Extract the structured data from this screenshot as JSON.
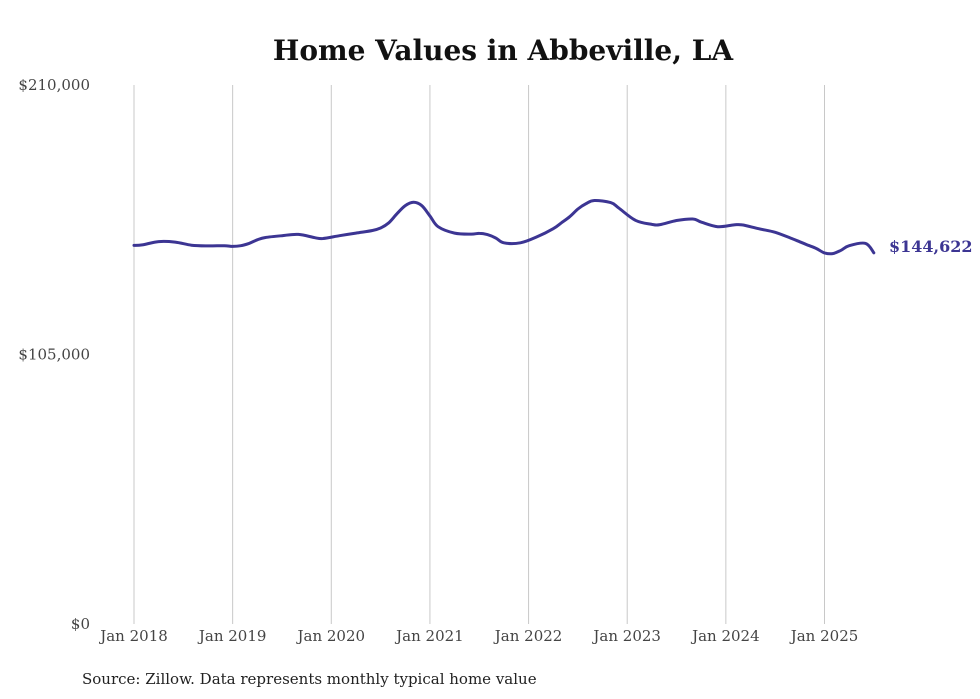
{
  "chart_data": {
    "type": "line",
    "title": "Home Values in Abbeville, LA",
    "xlabel": "",
    "ylabel": "",
    "ylim": [
      0,
      210000
    ],
    "y_ticks": [
      {
        "value": 0,
        "label": "$0"
      },
      {
        "value": 105000,
        "label": "$105,000"
      },
      {
        "value": 210000,
        "label": "$210,000"
      }
    ],
    "x_ticks": [
      {
        "value": 2018,
        "label": "Jan 2018"
      },
      {
        "value": 2019,
        "label": "Jan 2019"
      },
      {
        "value": 2020,
        "label": "Jan 2020"
      },
      {
        "value": 2021,
        "label": "Jan 2021"
      },
      {
        "value": 2022,
        "label": "Jan 2022"
      },
      {
        "value": 2023,
        "label": "Jan 2023"
      },
      {
        "value": 2024,
        "label": "Jan 2024"
      },
      {
        "value": 2025,
        "label": "Jan 2025"
      }
    ],
    "xlim": [
      2018,
      2025.5
    ],
    "grid": "vertical",
    "series": [
      {
        "name": "Typical home value",
        "color": "#3c3593",
        "x": [
          2018.0,
          2018.083,
          2018.25,
          2018.417,
          2018.583,
          2018.75,
          2018.917,
          2019.0,
          2019.083,
          2019.167,
          2019.25,
          2019.333,
          2019.5,
          2019.667,
          2019.833,
          2019.917,
          2020.083,
          2020.25,
          2020.417,
          2020.5,
          2020.583,
          2020.667,
          2020.75,
          2020.833,
          2020.917,
          2021.0,
          2021.083,
          2021.25,
          2021.417,
          2021.5,
          2021.583,
          2021.667,
          2021.75,
          2021.917,
          2022.083,
          2022.25,
          2022.333,
          2022.417,
          2022.5,
          2022.583,
          2022.667,
          2022.833,
          2022.917,
          2023.083,
          2023.25,
          2023.333,
          2023.5,
          2023.667,
          2023.75,
          2023.917,
          2024.083,
          2024.167,
          2024.333,
          2024.5,
          2024.667,
          2024.75,
          2024.833,
          2024.917,
          2025.0,
          2025.083,
          2025.167,
          2025.25,
          2025.417,
          2025.5
        ],
        "values": [
          147500,
          147700,
          149000,
          148800,
          147600,
          147300,
          147400,
          147100,
          147400,
          148300,
          149700,
          150600,
          151300,
          151800,
          150500,
          150200,
          151300,
          152300,
          153300,
          154300,
          156300,
          159900,
          163000,
          164300,
          163000,
          159000,
          154800,
          152300,
          151900,
          152200,
          151700,
          150400,
          148500,
          148500,
          150800,
          154000,
          156300,
          158700,
          161700,
          163800,
          165000,
          164200,
          162000,
          157300,
          155700,
          155600,
          157200,
          157800,
          156600,
          154800,
          155500,
          155500,
          154000,
          152600,
          150200,
          148900,
          147600,
          146300,
          144600,
          144300,
          145600,
          147400,
          148300,
          144622
        ]
      }
    ],
    "end_label": "$144,622"
  },
  "source_text": "Source: Zillow. Data represents monthly typical home value"
}
